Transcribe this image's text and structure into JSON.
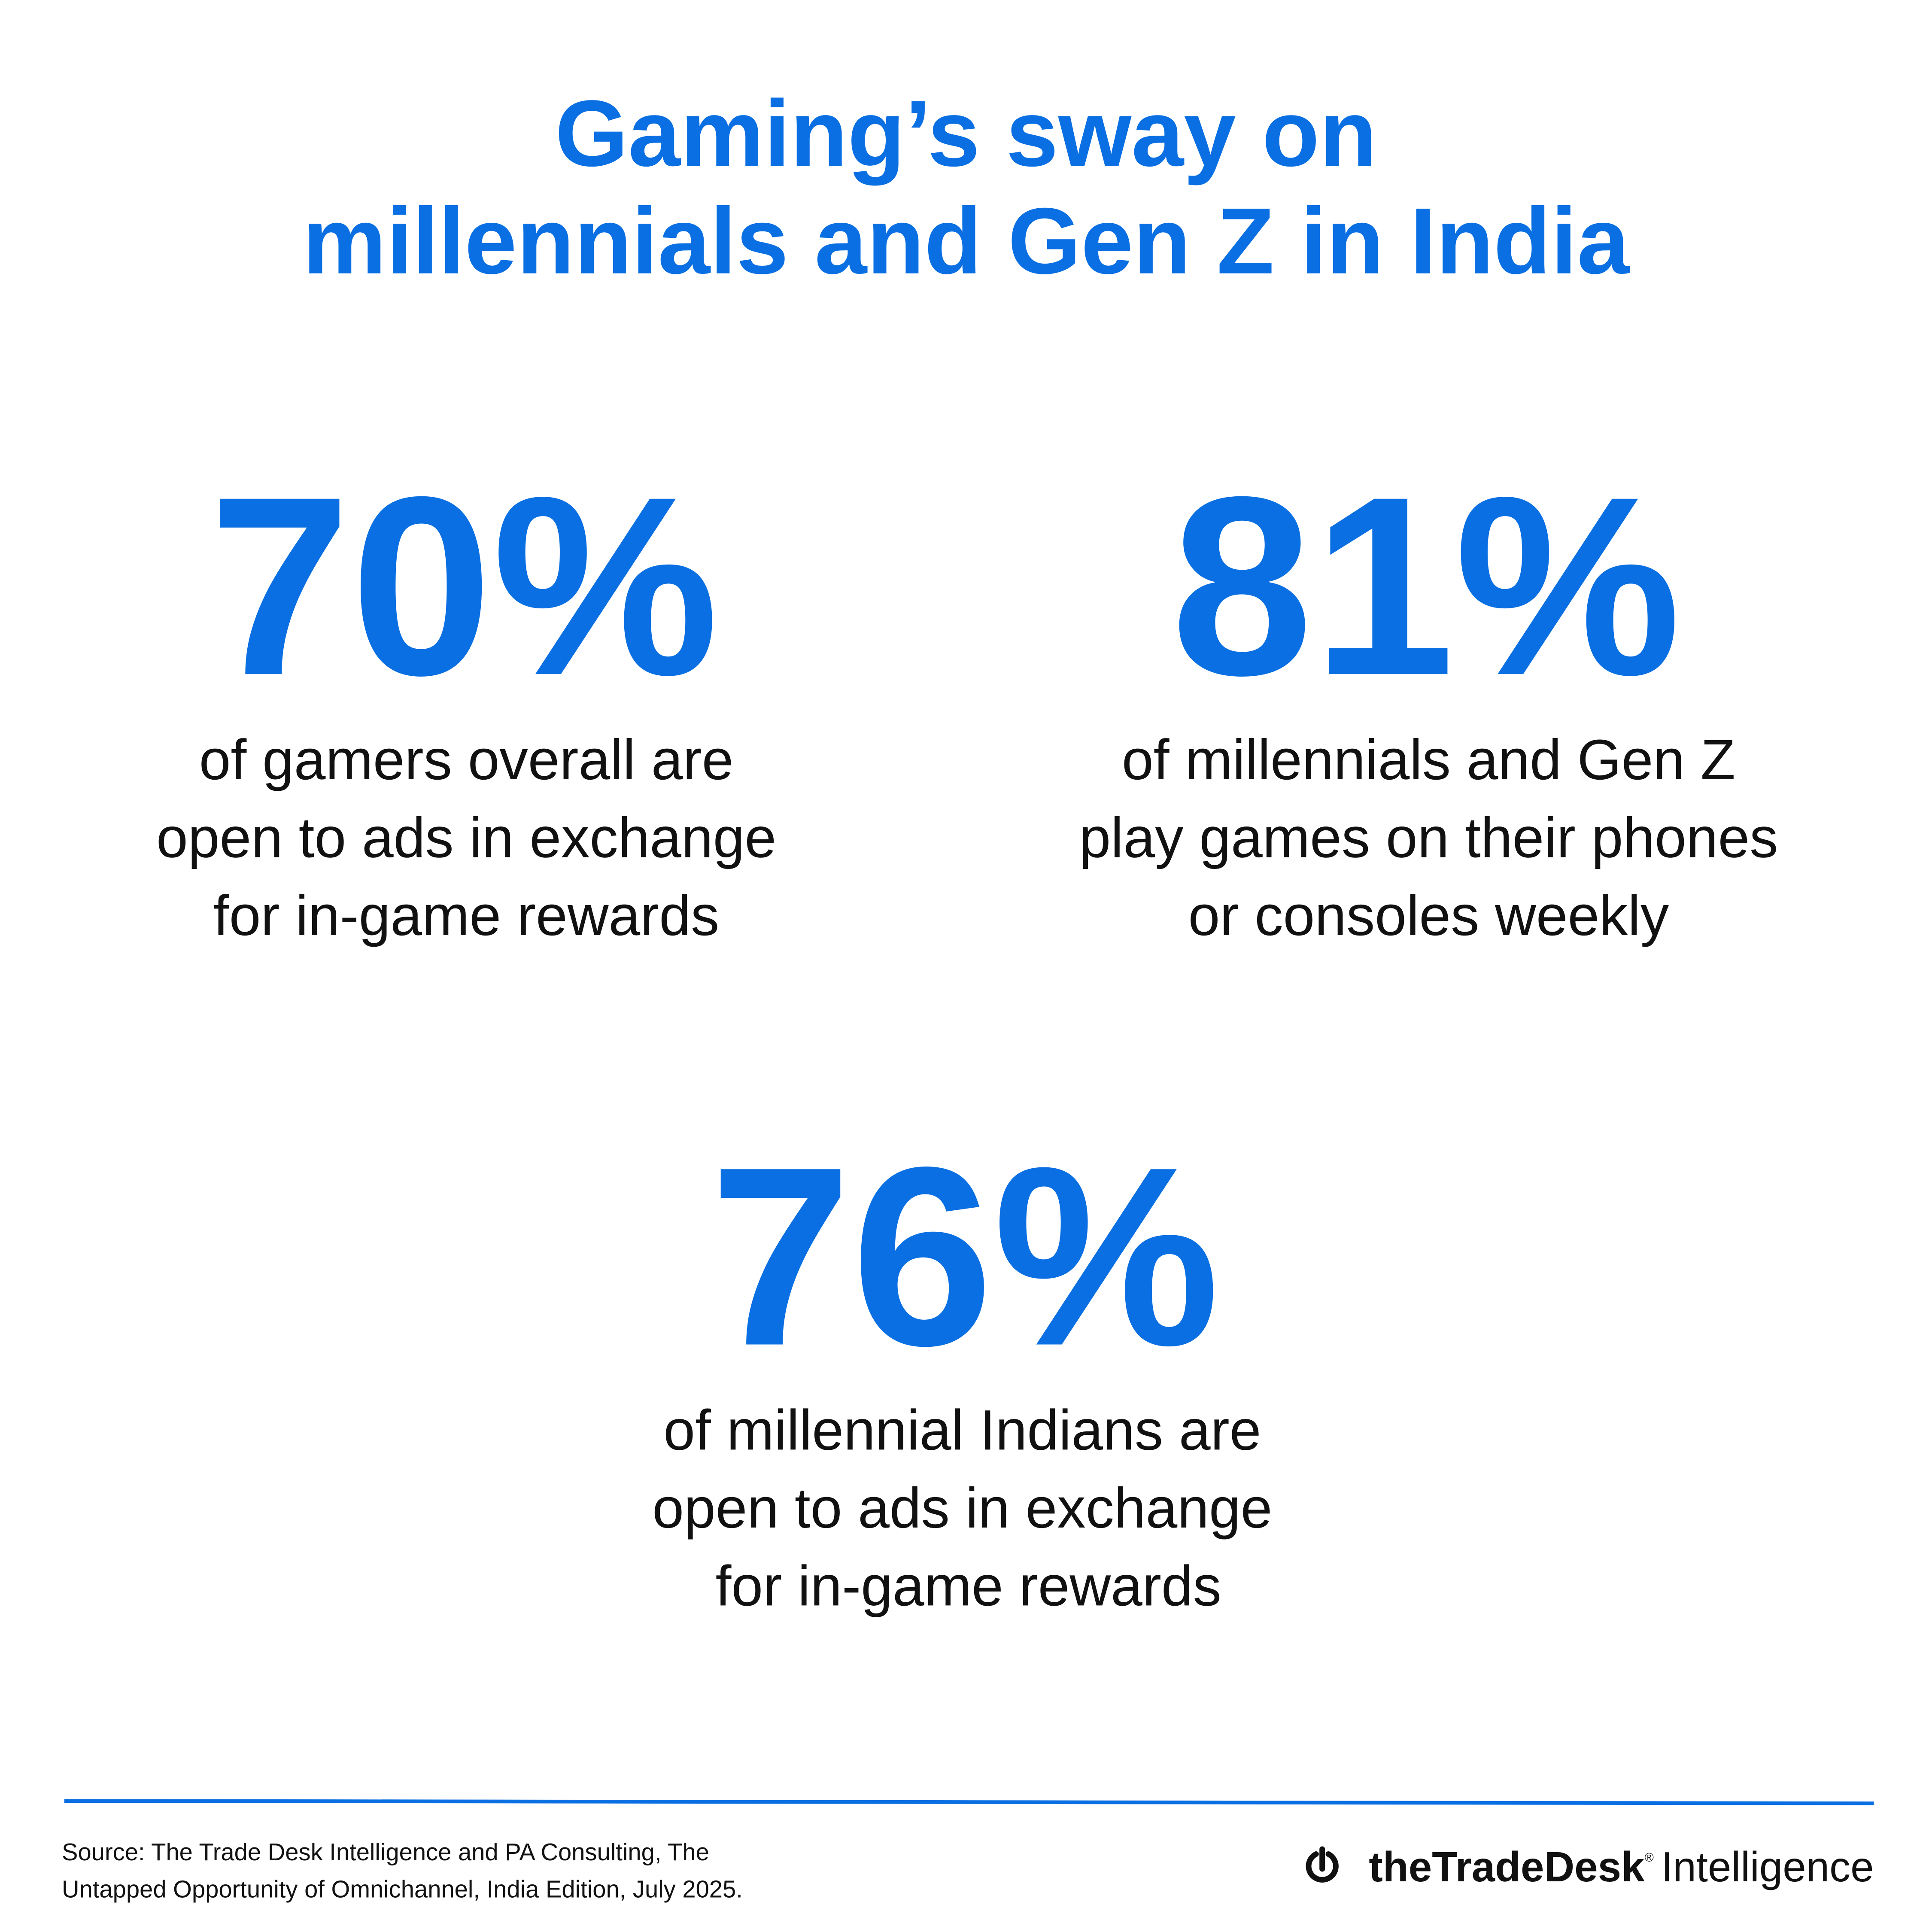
{
  "header": {
    "title_lines": [
      "Gaming’s sway on",
      "millennials and Gen Z in India"
    ]
  },
  "stats": [
    {
      "value": "70%",
      "description_lines": [
        "of gamers overall are",
        "open to ads in exchange",
        "for in-game rewards"
      ]
    },
    {
      "value": "81%",
      "description_lines": [
        "of millennials and Gen Z",
        "play games on their phones",
        "or consoles weekly"
      ]
    },
    {
      "value": "76%",
      "description_lines": [
        "of millennial Indians are",
        "open to ads in exchange",
        "for in-game rewards"
      ]
    }
  ],
  "footer": {
    "source_lines": [
      "Source: The Trade Desk Intelligence and PA Consulting, The",
      "Untapped Opportunity of Omnichannel, India Edition, July 2025."
    ],
    "logo": {
      "brand": "theTradeDesk",
      "mark": "®",
      "product": "Intelligence"
    }
  }
}
